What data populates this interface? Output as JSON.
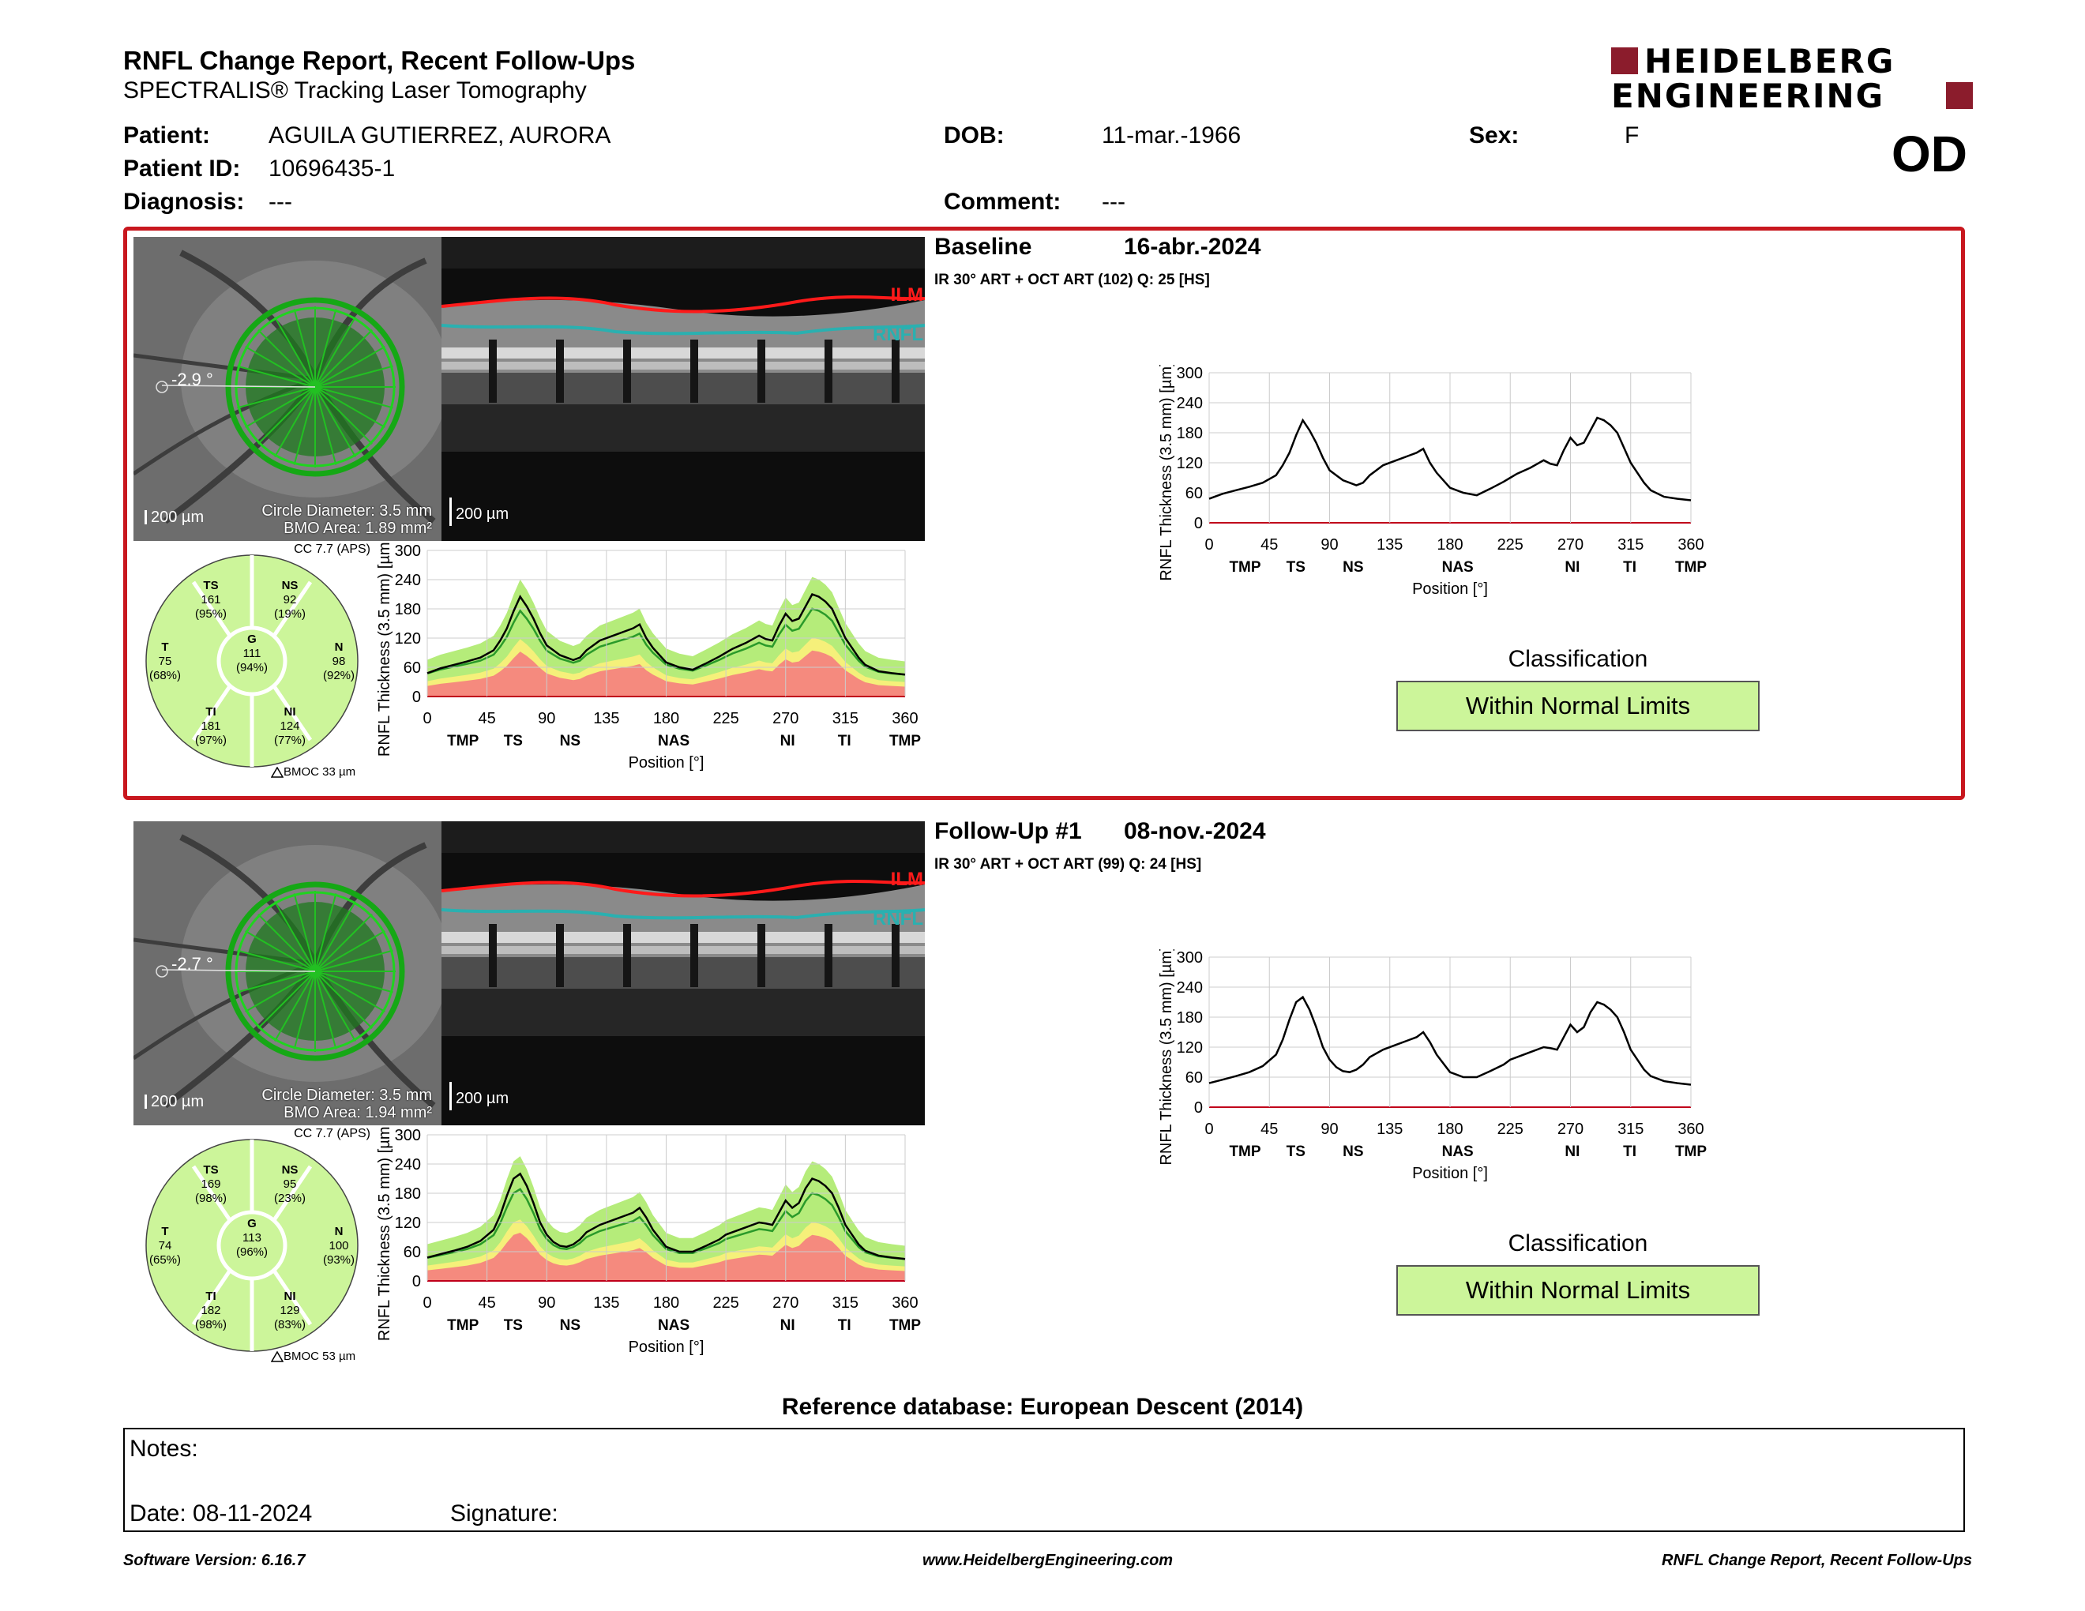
{
  "header": {
    "title": "RNFL Change Report, Recent Follow-Ups",
    "subtitle": "SPECTRALIS® Tracking Laser Tomography",
    "logo_line1": "HEIDELBERG",
    "logo_line2": "ENGINEERING",
    "eye": "OD"
  },
  "patient": {
    "patient_label": "Patient:",
    "patient_value": "AGUILA GUTIERREZ, AURORA",
    "id_label": "Patient ID:",
    "id_value": "10696435-1",
    "diagnosis_label": "Diagnosis:",
    "diagnosis_value": "---",
    "dob_label": "DOB:",
    "dob_value": "11-mar.-1966",
    "comment_label": "Comment:",
    "comment_value": "---",
    "sex_label": "Sex:",
    "sex_value": "F"
  },
  "exams": [
    {
      "title": "Baseline",
      "date": "16-abr.-2024",
      "acquisition": "IR 30° ART + OCT ART (102) Q: 25 [HS]",
      "angle": "-2.9 °",
      "scale": "200 µm",
      "circle_diameter": "Circle Diameter: 3.5 mm",
      "bmo_area": "BMO Area: 1.89 mm²",
      "bscan_scale": "200 µm",
      "ilm": "ILM",
      "rnfl": "RNFL",
      "cc": "CC 7.7 (APS)",
      "bmoc": "BMOC 33 µm",
      "sectors": {
        "TS": {
          "label": "TS",
          "value": "161",
          "pct": "(95%)"
        },
        "NS": {
          "label": "NS",
          "value": "92",
          "pct": "(19%)"
        },
        "T": {
          "label": "T",
          "value": "75",
          "pct": "(68%)"
        },
        "G": {
          "label": "G",
          "value": "111",
          "pct": "(94%)"
        },
        "N": {
          "label": "N",
          "value": "98",
          "pct": "(92%)"
        },
        "TI": {
          "label": "TI",
          "value": "181",
          "pct": "(97%)"
        },
        "NI": {
          "label": "NI",
          "value": "124",
          "pct": "(77%)"
        }
      },
      "classification_label": "Classification",
      "classification_value": "Within Normal Limits"
    },
    {
      "title": "Follow-Up #1",
      "date": "08-nov.-2024",
      "acquisition": "IR 30° ART + OCT ART (99) Q: 24 [HS]",
      "angle": "-2.7 °",
      "scale": "200 µm",
      "circle_diameter": "Circle Diameter: 3.5 mm",
      "bmo_area": "BMO Area: 1.94 mm²",
      "bscan_scale": "200 µm",
      "ilm": "ILM",
      "rnfl": "RNFL",
      "cc": "CC 7.7 (APS)",
      "bmoc": "BMOC 53 µm",
      "sectors": {
        "TS": {
          "label": "TS",
          "value": "169",
          "pct": "(98%)"
        },
        "NS": {
          "label": "NS",
          "value": "95",
          "pct": "(23%)"
        },
        "T": {
          "label": "T",
          "value": "74",
          "pct": "(65%)"
        },
        "G": {
          "label": "G",
          "value": "113",
          "pct": "(96%)"
        },
        "N": {
          "label": "N",
          "value": "100",
          "pct": "(93%)"
        },
        "TI": {
          "label": "TI",
          "value": "182",
          "pct": "(98%)"
        },
        "NI": {
          "label": "NI",
          "value": "129",
          "pct": "(83%)"
        }
      },
      "classification_label": "Classification",
      "classification_value": "Within Normal Limits"
    }
  ],
  "colors": {
    "frame_red": "#c8171e",
    "normal_green": "#ccf59a",
    "band_green": "#b5ec7a",
    "band_yellow": "#f5f07a",
    "band_red": "#f58a7e",
    "mean_line": "#2a9a2a",
    "ilm_red": "#ff1a1a",
    "rnfl_teal": "#2ab0b0",
    "logo_red": "#8b1c2c"
  },
  "chart_data": [
    {
      "type": "line",
      "title": "",
      "ylabel": "RNFL Thickness (3.5 mm) [µm]",
      "xlabel": "Position [°]",
      "ylim": [
        0,
        300
      ],
      "xlim": [
        0,
        360
      ],
      "yticks": [
        "0",
        "60",
        "120",
        "180",
        "240",
        "300"
      ],
      "xticks": [
        "0",
        "45",
        "90",
        "135",
        "180",
        "225",
        "270",
        "315",
        "360"
      ],
      "sector_ticks": [
        "TMP",
        "TS",
        "NS",
        "NAS",
        "NI",
        "TI",
        "TMP"
      ],
      "grid": true,
      "series": [
        {
          "name": "",
          "x": [
            0,
            10,
            20,
            30,
            40,
            50,
            55,
            60,
            65,
            70,
            75,
            80,
            85,
            90,
            95,
            100,
            105,
            110,
            115,
            120,
            130,
            140,
            150,
            155,
            160,
            165,
            170,
            180,
            190,
            200,
            210,
            220,
            225,
            230,
            240,
            250,
            255,
            260,
            265,
            270,
            275,
            280,
            285,
            290,
            295,
            300,
            305,
            310,
            315,
            320,
            325,
            330,
            340,
            350,
            360
          ],
          "y": [
            48,
            58,
            65,
            72,
            80,
            95,
            115,
            140,
            175,
            205,
            185,
            160,
            130,
            105,
            95,
            85,
            80,
            75,
            80,
            95,
            115,
            125,
            135,
            140,
            148,
            120,
            100,
            70,
            60,
            55,
            68,
            82,
            90,
            98,
            110,
            125,
            118,
            115,
            145,
            170,
            155,
            160,
            185,
            210,
            205,
            195,
            180,
            150,
            120,
            100,
            80,
            65,
            52,
            48,
            45
          ]
        }
      ]
    },
    {
      "type": "line",
      "title": "",
      "ylabel": "RNFL Thickness (3.5 mm) [µm]",
      "xlabel": "Position [°]",
      "ylim": [
        0,
        300
      ],
      "xlim": [
        0,
        360
      ],
      "yticks": [
        "0",
        "60",
        "120",
        "180",
        "240",
        "300"
      ],
      "xticks": [
        "0",
        "45",
        "90",
        "135",
        "180",
        "225",
        "270",
        "315",
        "360"
      ],
      "sector_ticks": [
        "TMP",
        "TS",
        "NS",
        "NAS",
        "NI",
        "TI",
        "TMP"
      ],
      "grid": true,
      "series": [
        {
          "name": "",
          "x": [
            0,
            10,
            20,
            30,
            40,
            50,
            55,
            60,
            65,
            70,
            75,
            80,
            85,
            90,
            95,
            100,
            105,
            110,
            115,
            120,
            130,
            140,
            150,
            155,
            160,
            165,
            170,
            180,
            190,
            200,
            210,
            220,
            225,
            230,
            240,
            250,
            255,
            260,
            265,
            270,
            275,
            280,
            285,
            290,
            295,
            300,
            305,
            310,
            315,
            320,
            325,
            330,
            340,
            350,
            360
          ],
          "y": [
            48,
            55,
            62,
            70,
            82,
            105,
            135,
            175,
            210,
            220,
            195,
            160,
            120,
            95,
            80,
            72,
            70,
            75,
            85,
            100,
            115,
            125,
            135,
            140,
            150,
            130,
            105,
            70,
            60,
            60,
            72,
            85,
            95,
            100,
            110,
            120,
            118,
            115,
            140,
            165,
            150,
            160,
            190,
            210,
            205,
            195,
            180,
            150,
            115,
            95,
            75,
            62,
            52,
            48,
            45
          ]
        }
      ]
    }
  ]
}
